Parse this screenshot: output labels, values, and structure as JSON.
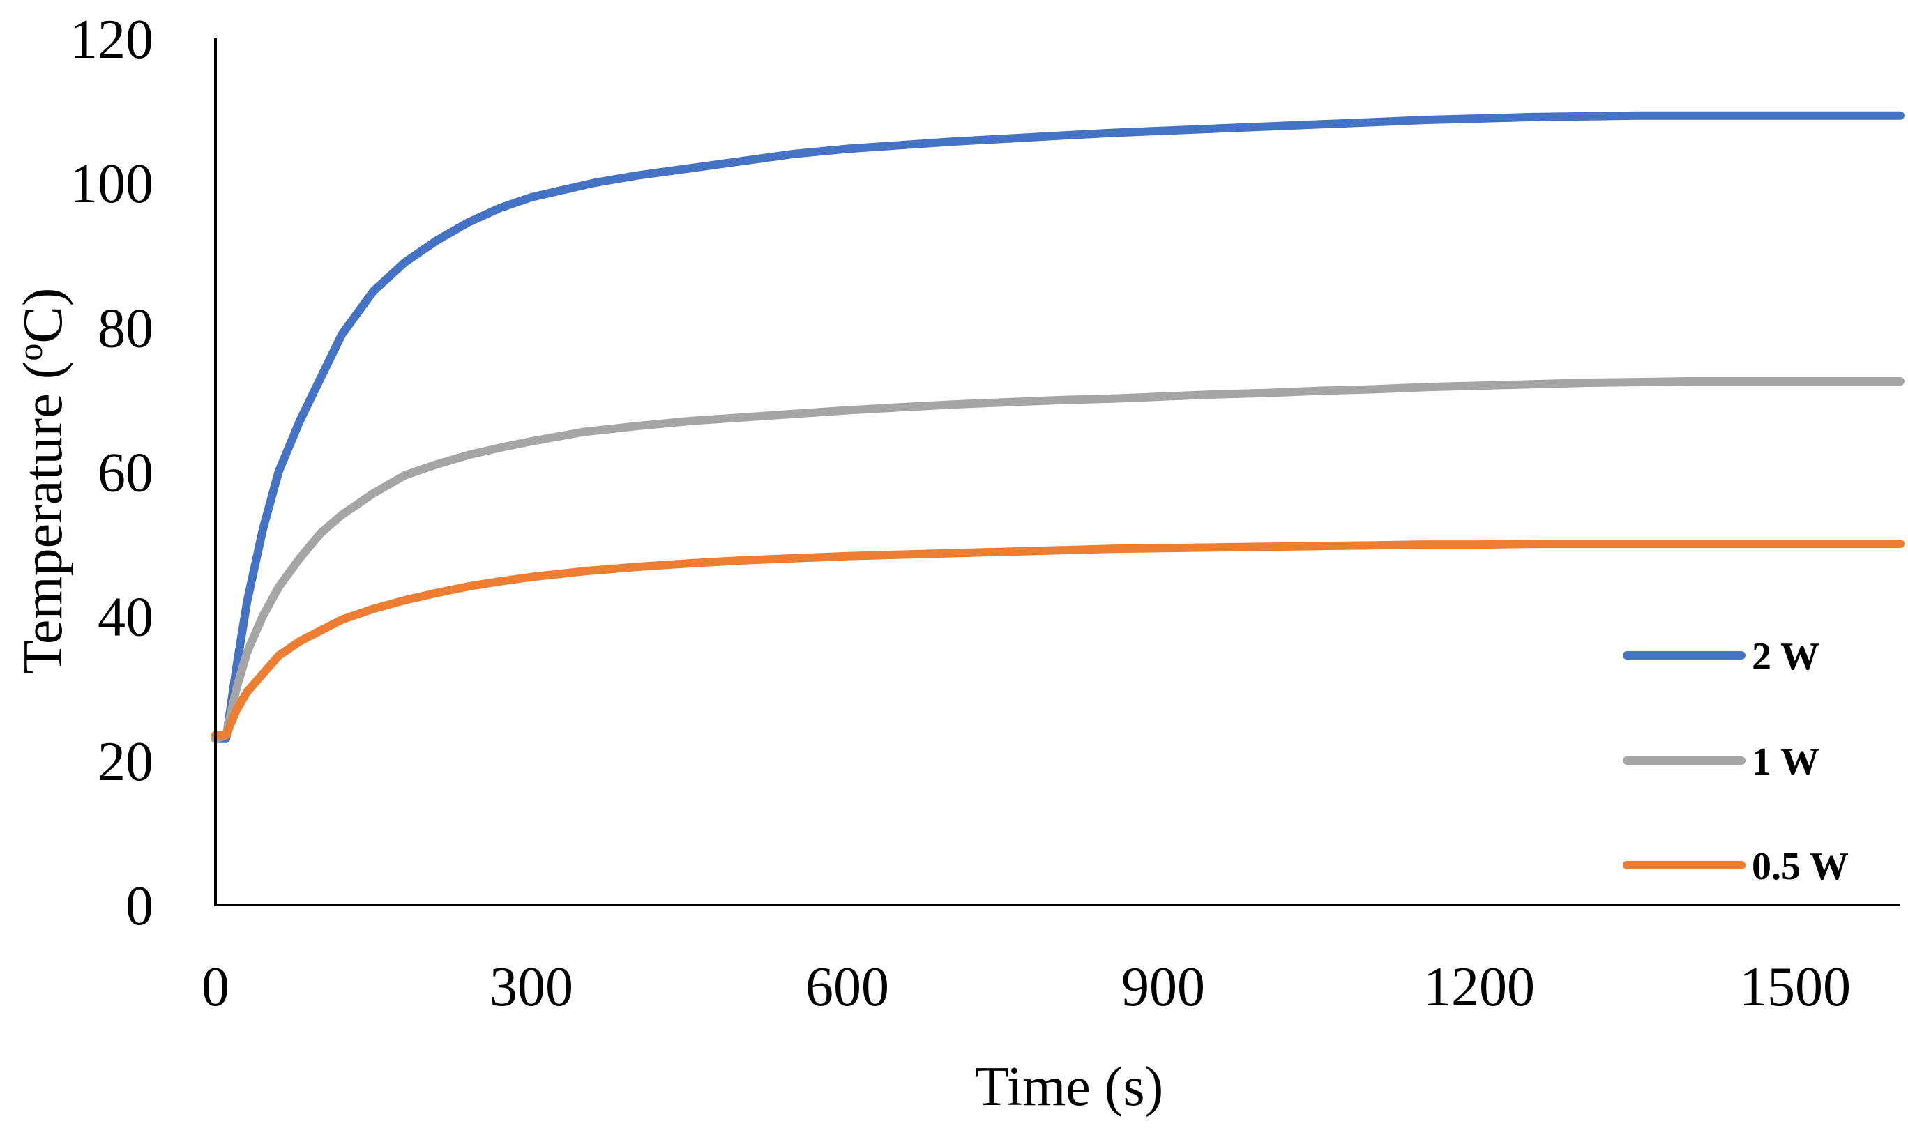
{
  "chart_data": {
    "type": "line",
    "title": "",
    "xlabel": "Time (s)",
    "ylabel_main": "Temperature (",
    "ylabel_sup": "o",
    "ylabel_tail": "C)",
    "xlim": [
      0,
      1600
    ],
    "ylim": [
      0,
      120
    ],
    "xticks": [
      0,
      300,
      600,
      900,
      1200,
      1500
    ],
    "yticks": [
      0,
      20,
      40,
      60,
      80,
      100,
      120
    ],
    "grid": false,
    "legend_position": "bottom-right",
    "series": [
      {
        "name": "2 W",
        "color": "#4472C4",
        "x": [
          0,
          10,
          20,
          30,
          45,
          60,
          80,
          100,
          120,
          150,
          180,
          210,
          240,
          270,
          300,
          330,
          360,
          400,
          450,
          500,
          550,
          600,
          650,
          700,
          750,
          800,
          850,
          900,
          950,
          1000,
          1050,
          1100,
          1150,
          1200,
          1250,
          1300,
          1350,
          1400,
          1450,
          1500,
          1550,
          1600
        ],
        "values": [
          23,
          23,
          33,
          42,
          52,
          60,
          67,
          73,
          79,
          85,
          89,
          92,
          94.5,
          96.5,
          98,
          99,
          100,
          101,
          102,
          103,
          104,
          104.7,
          105.2,
          105.7,
          106.1,
          106.5,
          106.9,
          107.2,
          107.5,
          107.8,
          108.1,
          108.4,
          108.7,
          108.9,
          109.1,
          109.2,
          109.3,
          109.3,
          109.3,
          109.3,
          109.3,
          109.3
        ]
      },
      {
        "name": "1 W",
        "color": "#A5A5A5",
        "x": [
          0,
          10,
          20,
          30,
          45,
          60,
          80,
          100,
          120,
          150,
          180,
          210,
          240,
          270,
          300,
          350,
          400,
          450,
          500,
          550,
          600,
          650,
          700,
          750,
          800,
          850,
          900,
          950,
          1000,
          1050,
          1100,
          1150,
          1200,
          1250,
          1300,
          1350,
          1400,
          1450,
          1500,
          1550,
          1600
        ],
        "values": [
          23,
          23.5,
          30,
          35,
          40,
          44,
          48,
          51.5,
          54,
          57,
          59.5,
          61,
          62.3,
          63.3,
          64.2,
          65.5,
          66.3,
          67,
          67.5,
          68,
          68.5,
          68.9,
          69.3,
          69.6,
          69.9,
          70.1,
          70.4,
          70.7,
          70.9,
          71.2,
          71.4,
          71.7,
          71.9,
          72.1,
          72.3,
          72.4,
          72.5,
          72.5,
          72.5,
          72.5,
          72.5
        ]
      },
      {
        "name": "0.5 W",
        "color": "#ED7D31",
        "x": [
          0,
          10,
          20,
          30,
          45,
          60,
          80,
          100,
          120,
          150,
          180,
          210,
          240,
          270,
          300,
          350,
          400,
          450,
          500,
          550,
          600,
          650,
          700,
          750,
          800,
          850,
          900,
          950,
          1000,
          1050,
          1100,
          1150,
          1200,
          1250,
          1300,
          1350,
          1400,
          1450,
          1500,
          1550,
          1600
        ],
        "values": [
          23.5,
          23.5,
          27,
          29.5,
          32,
          34.5,
          36.5,
          38,
          39.5,
          41,
          42.2,
          43.2,
          44.1,
          44.8,
          45.4,
          46.2,
          46.8,
          47.3,
          47.7,
          48,
          48.3,
          48.5,
          48.7,
          48.9,
          49.1,
          49.3,
          49.4,
          49.5,
          49.6,
          49.7,
          49.8,
          49.9,
          49.9,
          50,
          50,
          50,
          50,
          50,
          50,
          50,
          50
        ]
      }
    ]
  }
}
